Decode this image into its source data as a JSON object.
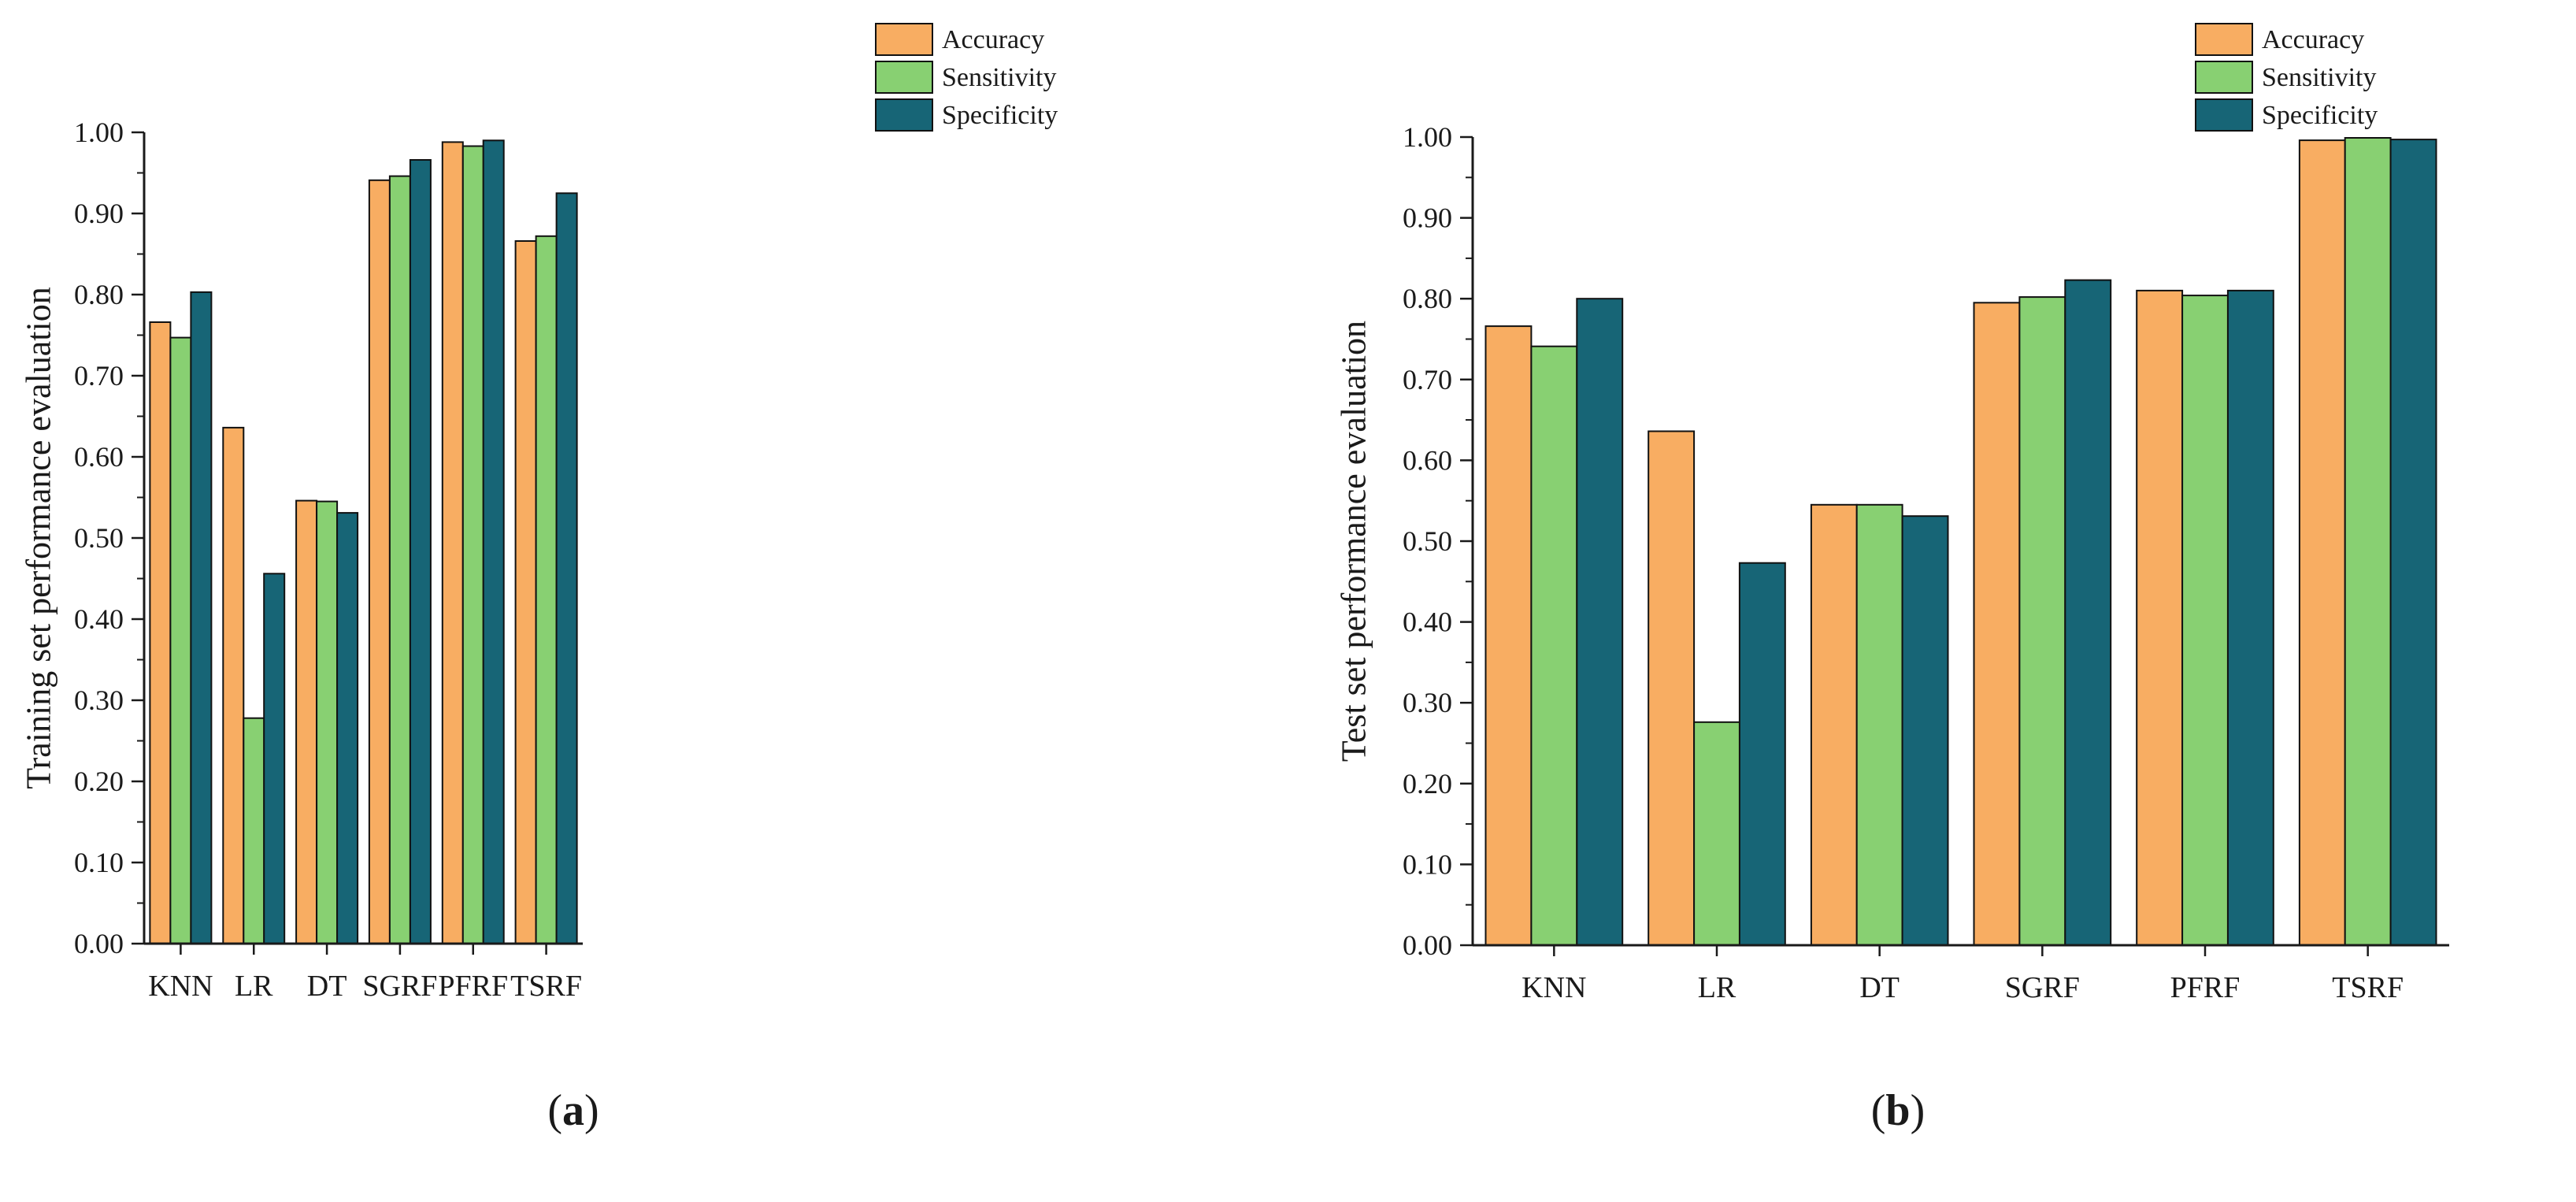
{
  "colors": {
    "accuracy": "#f8ad62",
    "sensitivity": "#88d072",
    "specificity": "#176576",
    "axis": "#1a1a1a"
  },
  "chart_data": [
    {
      "type": "bar",
      "panel_label": {
        "open": "(",
        "letter": "a",
        "close": ")"
      },
      "ylabel": "Training set performance evaluation",
      "xlabel": "",
      "ylim": [
        0,
        1.0
      ],
      "yticks": [
        "0.00",
        "0.10",
        "0.20",
        "0.30",
        "0.40",
        "0.50",
        "0.60",
        "0.70",
        "0.80",
        "0.90",
        "1.00"
      ],
      "categories": [
        "KNN",
        "LR",
        "DT",
        "SGRF",
        "PFRF",
        "TSRF"
      ],
      "legend_position": "top-right",
      "series": [
        {
          "name": "Accuracy",
          "color_key": "accuracy",
          "values": [
            0.766,
            0.636,
            0.546,
            0.941,
            0.988,
            0.866
          ]
        },
        {
          "name": "Sensitivity",
          "color_key": "sensitivity",
          "values": [
            0.747,
            0.278,
            0.545,
            0.946,
            0.983,
            0.872
          ]
        },
        {
          "name": "Specificity",
          "color_key": "specificity",
          "values": [
            0.803,
            0.456,
            0.531,
            0.966,
            0.99,
            0.925
          ]
        }
      ]
    },
    {
      "type": "bar",
      "panel_label": {
        "open": "(",
        "letter": "b",
        "close": ")"
      },
      "ylabel": "Test set performance evaluation",
      "xlabel": "",
      "ylim": [
        0,
        1.0
      ],
      "yticks": [
        "0.00",
        "0.10",
        "0.20",
        "0.30",
        "0.40",
        "0.50",
        "0.60",
        "0.70",
        "0.80",
        "0.90",
        "1.00"
      ],
      "categories": [
        "KNN",
        "LR",
        "DT",
        "SGRF",
        "PFRF",
        "TSRF"
      ],
      "legend_position": "top-right",
      "series": [
        {
          "name": "Accuracy",
          "color_key": "accuracy",
          "values": [
            0.766,
            0.636,
            0.545,
            0.795,
            0.81,
            0.996
          ]
        },
        {
          "name": "Sensitivity",
          "color_key": "sensitivity",
          "values": [
            0.741,
            0.276,
            0.545,
            0.802,
            0.804,
            0.999
          ]
        },
        {
          "name": "Specificity",
          "color_key": "specificity",
          "values": [
            0.8,
            0.473,
            0.531,
            0.823,
            0.81,
            0.997
          ]
        }
      ]
    }
  ]
}
